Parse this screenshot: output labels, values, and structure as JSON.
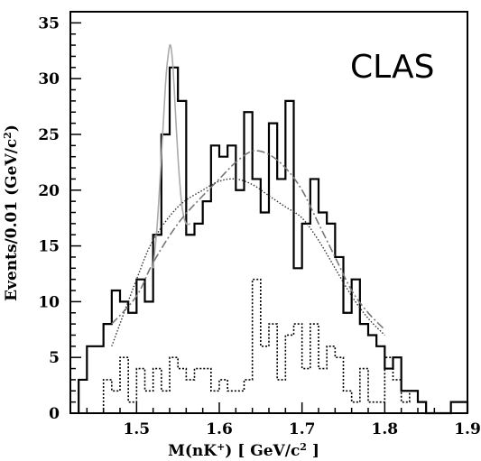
{
  "chart_data": {
    "type": "line",
    "title": "",
    "experiment_label": "CLAS",
    "xlabel": "M(nK<sup>+</sup>) [ GeV/c<sup>2</sup> ]",
    "xlabel_parts": [
      "M(nK",
      "+",
      ") [ GeV/c",
      "2",
      " ]"
    ],
    "ylabel_parts": [
      "Events/0.01 (GeV/c",
      "2",
      ")"
    ],
    "xlim": [
      1.42,
      1.9
    ],
    "ylim": [
      0,
      36
    ],
    "xticks": [
      1.5,
      1.6,
      1.7,
      1.8,
      1.9
    ],
    "xtick_labels": [
      "1.5",
      "1.6",
      "1.7",
      "1.8",
      "1.9"
    ],
    "yticks": [
      0,
      5,
      10,
      15,
      20,
      25,
      30,
      35
    ],
    "ytick_labels": [
      "0",
      "5",
      "10",
      "15",
      "20",
      "25",
      "30",
      "35"
    ],
    "grid": false,
    "legend": "none",
    "series": [
      {
        "style": "histogram-solid",
        "color": "#000000",
        "bin_edges": [
          1.43,
          1.44,
          1.45,
          1.46,
          1.47,
          1.48,
          1.49,
          1.5,
          1.51,
          1.52,
          1.53,
          1.54,
          1.55,
          1.56,
          1.57,
          1.58,
          1.59,
          1.6,
          1.61,
          1.62,
          1.63,
          1.64,
          1.65,
          1.66,
          1.67,
          1.68,
          1.69,
          1.7,
          1.71,
          1.72,
          1.73,
          1.74,
          1.75,
          1.76,
          1.77,
          1.78,
          1.79,
          1.8,
          1.81,
          1.82,
          1.83,
          1.84,
          1.85,
          1.86,
          1.87,
          1.88,
          1.89,
          1.9
        ],
        "values": [
          3,
          6,
          6,
          8,
          11,
          10,
          9,
          12,
          10,
          16,
          25,
          31,
          28,
          16,
          17,
          19,
          24,
          23,
          24,
          20,
          27,
          21,
          18,
          26,
          21,
          28,
          13,
          17,
          21,
          18,
          17,
          14,
          9,
          12,
          8,
          7,
          6,
          4,
          5,
          2,
          2,
          1,
          0,
          0,
          0,
          1,
          1,
          0
        ]
      },
      {
        "style": "histogram-dotted",
        "color": "#000000",
        "bin_edges": [
          1.46,
          1.47,
          1.48,
          1.49,
          1.5,
          1.51,
          1.52,
          1.53,
          1.54,
          1.55,
          1.56,
          1.57,
          1.58,
          1.59,
          1.6,
          1.61,
          1.62,
          1.63,
          1.64,
          1.65,
          1.66,
          1.67,
          1.68,
          1.69,
          1.7,
          1.71,
          1.72,
          1.73,
          1.74,
          1.75,
          1.76,
          1.77,
          1.78,
          1.79,
          1.8,
          1.81,
          1.82,
          1.83
        ],
        "values": [
          3,
          2,
          5,
          1,
          4,
          2,
          4,
          2,
          5,
          4,
          3,
          4,
          4,
          2,
          3,
          2,
          2,
          3,
          12,
          6,
          8,
          3,
          7,
          8,
          4,
          8,
          4,
          6,
          5,
          2,
          1,
          4,
          1,
          1,
          5,
          3,
          1,
          2
        ]
      },
      {
        "style": "smooth-gray-solid",
        "color": "#aaaaaa",
        "x": [
          1.52,
          1.525,
          1.53,
          1.535,
          1.538,
          1.541,
          1.544,
          1.547,
          1.55,
          1.553,
          1.556,
          1.56,
          1.565
        ],
        "y": [
          13,
          17,
          23,
          29.5,
          32,
          33,
          31,
          27,
          23,
          20,
          18,
          17,
          17
        ]
      },
      {
        "style": "smooth-gray-dashed",
        "color": "#777777",
        "x": [
          1.47,
          1.5,
          1.52,
          1.55,
          1.58,
          1.6,
          1.62,
          1.64,
          1.66,
          1.68,
          1.7,
          1.72,
          1.74,
          1.76,
          1.78,
          1.8
        ],
        "y": [
          8,
          10.5,
          13.5,
          17,
          19.5,
          21,
          22.5,
          23.5,
          23.2,
          22,
          20,
          17,
          14,
          11,
          9,
          7.5
        ]
      },
      {
        "style": "smooth-black-dotted",
        "color": "#333333",
        "x": [
          1.47,
          1.5,
          1.52,
          1.55,
          1.58,
          1.6,
          1.62,
          1.64,
          1.66,
          1.68,
          1.7,
          1.72,
          1.74,
          1.76,
          1.78,
          1.8
        ],
        "y": [
          6,
          12,
          15.5,
          18.5,
          20,
          20.8,
          21,
          20.5,
          19.5,
          18.5,
          17.5,
          15.5,
          13,
          10.5,
          8.5,
          7
        ]
      }
    ]
  }
}
